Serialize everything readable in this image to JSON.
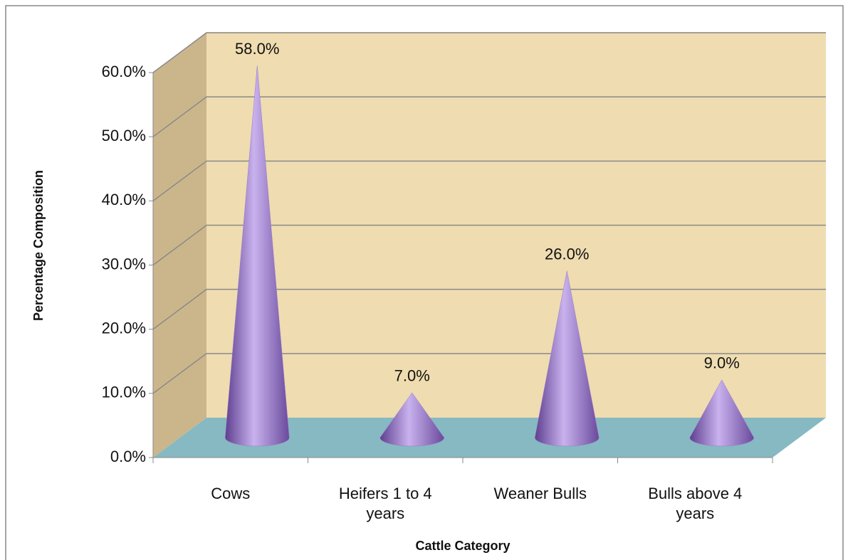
{
  "chart_data": {
    "type": "cone",
    "x_label": "Cattle Category",
    "y_label": "Percentage Composition",
    "categories": [
      "Cows",
      "Heifers 1 to 4 years",
      "Weaner Bulls",
      "Bulls above 4 years"
    ],
    "values": [
      58,
      7,
      26,
      9
    ],
    "value_labels": [
      "58.0%",
      "7.0%",
      "26.0%",
      "9.0%"
    ],
    "color": "#9a78cc",
    "ylim": [
      0,
      60
    ],
    "yticks": [
      {
        "value": 0,
        "label": "0.0%"
      },
      {
        "value": 10,
        "label": "10.0%"
      },
      {
        "value": 20,
        "label": "20.0%"
      },
      {
        "value": 30,
        "label": "30.0%"
      },
      {
        "value": 40,
        "label": "40.0%"
      },
      {
        "value": 50,
        "label": "50.0%"
      },
      {
        "value": 60,
        "label": "60.0%"
      }
    ],
    "grid": true
  }
}
